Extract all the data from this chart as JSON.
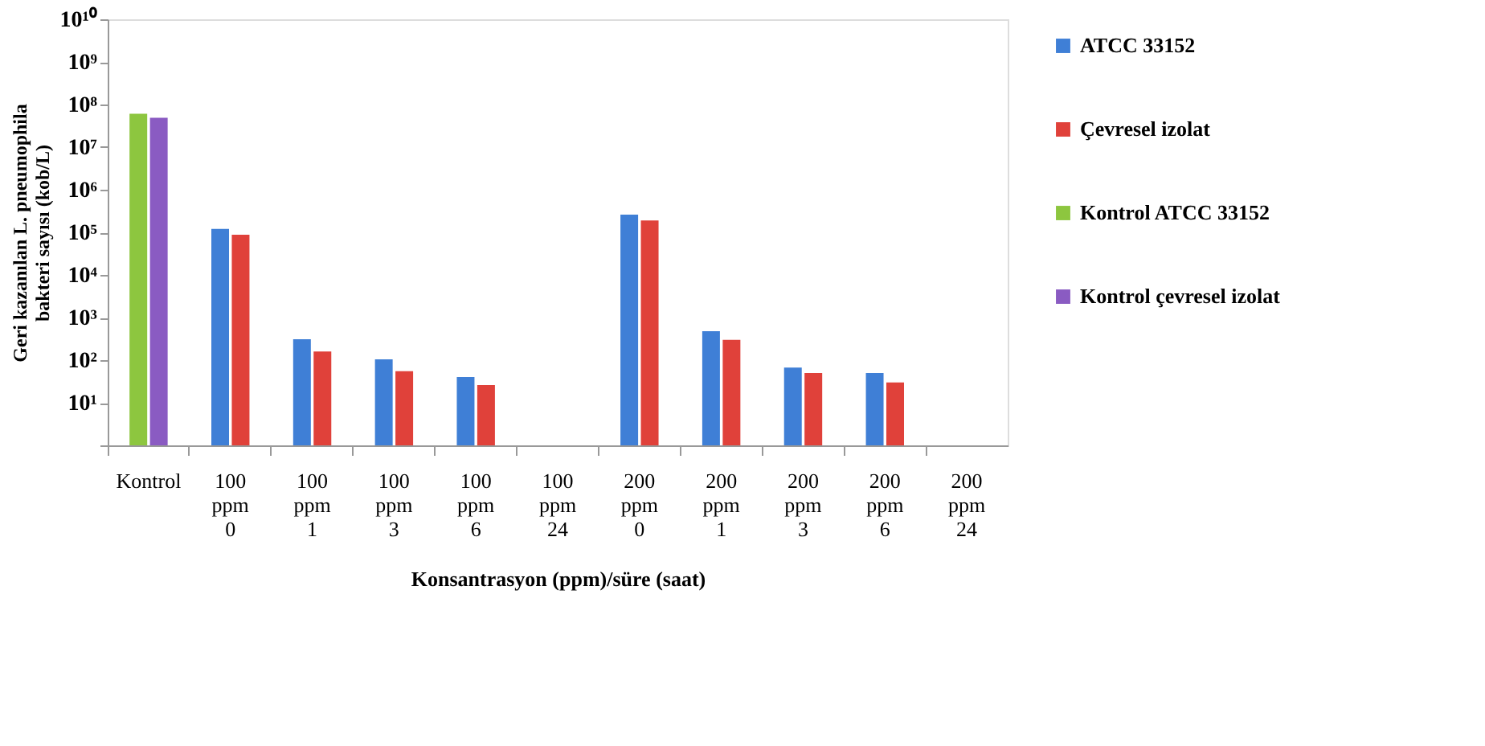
{
  "chart_data": {
    "type": "bar",
    "categories": [
      "Kontrol",
      "100 ppm 0",
      "100 ppm 1",
      "100 ppm 3",
      "100 ppm 6",
      "100 ppm 24",
      "200 ppm 0",
      "200 ppm 1",
      "200 ppm 3",
      "200 ppm 6",
      "200 ppm 24"
    ],
    "series": [
      {
        "name": "ATCC 33152",
        "color": "#3f7fd6",
        "values": [
          null,
          120000,
          310,
          105,
          40,
          null,
          260000,
          480,
          67,
          50,
          null
        ]
      },
      {
        "name": "Çevresel izolat",
        "color": "#e0413a",
        "values": [
          null,
          88000,
          160,
          55,
          26,
          null,
          190000,
          300,
          50,
          30,
          null
        ]
      },
      {
        "name": "Kontrol ATCC 33152",
        "color": "#8dc63f",
        "values": [
          61000000,
          null,
          null,
          null,
          null,
          null,
          null,
          null,
          null,
          null,
          null
        ]
      },
      {
        "name": "Kontrol çevresel izolat",
        "color": "#8a5bc2",
        "values": [
          49000000,
          null,
          null,
          null,
          null,
          null,
          null,
          null,
          null,
          null,
          null
        ]
      }
    ],
    "log": "y",
    "ylim": [
      1,
      10000000000
    ],
    "yticks": [
      {
        "value": 1,
        "label": null
      },
      {
        "value": 10,
        "label": "10¹"
      },
      {
        "value": 100,
        "label": "10²"
      },
      {
        "value": 1000,
        "label": "10³"
      },
      {
        "value": 10000,
        "label": "10⁴"
      },
      {
        "value": 100000,
        "label": "10⁵"
      },
      {
        "value": 1000000,
        "label": "10⁶"
      },
      {
        "value": 10000000,
        "label": "10⁷"
      },
      {
        "value": 100000000,
        "label": "10⁸"
      },
      {
        "value": 1000000000,
        "label": "10⁹"
      },
      {
        "value": 10000000000,
        "label": "10¹⁰"
      }
    ],
    "ylabel": "Geri kazanılan L. pneumophila bakteri sayısı (kob/L)",
    "xlabel": "Konsantrasyon (ppm)/süre (saat)",
    "legend": "right",
    "grid": false
  }
}
